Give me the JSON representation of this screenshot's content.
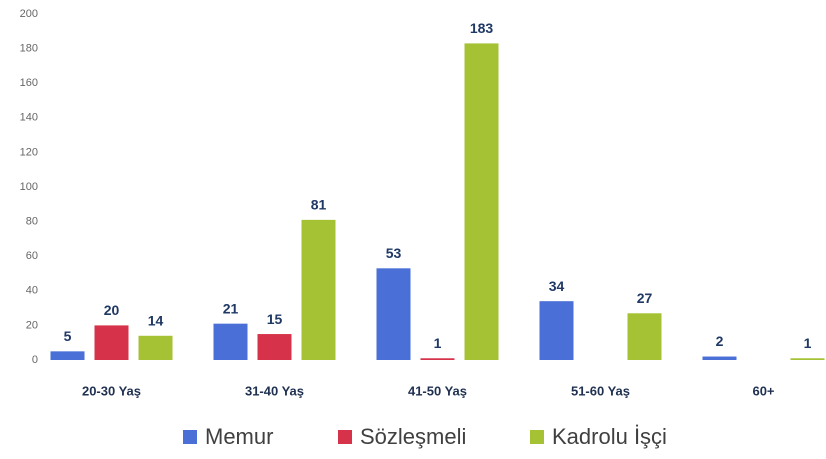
{
  "chart_data": {
    "type": "bar",
    "categories": [
      "20-30 Yaş",
      "31-40 Yaş",
      "41-50 Yaş",
      "51-60 Yaş",
      "60+"
    ],
    "series": [
      {
        "name": "Memur",
        "color": "#4a6fd6",
        "values": [
          5,
          21,
          53,
          34,
          2
        ]
      },
      {
        "name": "Sözleşmeli",
        "color": "#d6334a",
        "values": [
          20,
          15,
          1,
          null,
          null
        ]
      },
      {
        "name": "Kadrolu İşçi",
        "color": "#a4c234",
        "values": [
          14,
          81,
          183,
          27,
          1
        ]
      }
    ],
    "ylim": [
      0,
      200
    ],
    "yticks": [
      0,
      20,
      40,
      60,
      80,
      100,
      120,
      140,
      160,
      180,
      200
    ],
    "legend": "bottom"
  }
}
